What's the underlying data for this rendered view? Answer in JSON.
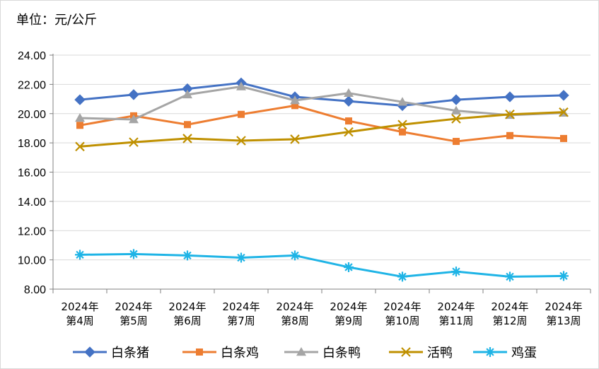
{
  "chart_data": {
    "type": "line",
    "unit_label": "单位：元/公斤",
    "categories": [
      [
        "2024年",
        "第4周"
      ],
      [
        "2024年",
        "第5周"
      ],
      [
        "2024年",
        "第6周"
      ],
      [
        "2024年",
        "第7周"
      ],
      [
        "2024年",
        "第8周"
      ],
      [
        "2024年",
        "第9周"
      ],
      [
        "2024年",
        "第10周"
      ],
      [
        "2024年",
        "第11周"
      ],
      [
        "2024年",
        "第12周"
      ],
      [
        "2024年",
        "第13周"
      ]
    ],
    "ylim": [
      8,
      24
    ],
    "yticks": [
      "8.00",
      "10.00",
      "12.00",
      "14.00",
      "16.00",
      "18.00",
      "20.00",
      "22.00",
      "24.00"
    ],
    "grid": true,
    "legend_position": "bottom",
    "series": [
      {
        "name": "白条猪",
        "color": "#4472C4",
        "marker": "diamond",
        "values": [
          20.95,
          21.3,
          21.7,
          22.1,
          21.15,
          20.85,
          20.55,
          20.95,
          21.15,
          21.25
        ]
      },
      {
        "name": "白条鸡",
        "color": "#ED7D31",
        "marker": "square",
        "values": [
          19.2,
          19.85,
          19.25,
          19.95,
          20.55,
          19.5,
          18.75,
          18.1,
          18.5,
          18.3
        ]
      },
      {
        "name": "白条鸭",
        "color": "#A5A5A5",
        "marker": "triangle",
        "values": [
          19.7,
          19.6,
          21.3,
          21.85,
          20.9,
          21.4,
          20.8,
          20.2,
          19.9,
          20.05
        ]
      },
      {
        "name": "活鸭",
        "color": "#BF9000",
        "marker": "x",
        "values": [
          17.75,
          18.05,
          18.3,
          18.15,
          18.25,
          18.75,
          19.25,
          19.65,
          19.95,
          20.1
        ]
      },
      {
        "name": "鸡蛋",
        "color": "#1FB4E6",
        "marker": "star",
        "values": [
          10.35,
          10.4,
          10.3,
          10.15,
          10.3,
          9.5,
          8.85,
          9.2,
          8.85,
          8.9
        ]
      }
    ]
  }
}
